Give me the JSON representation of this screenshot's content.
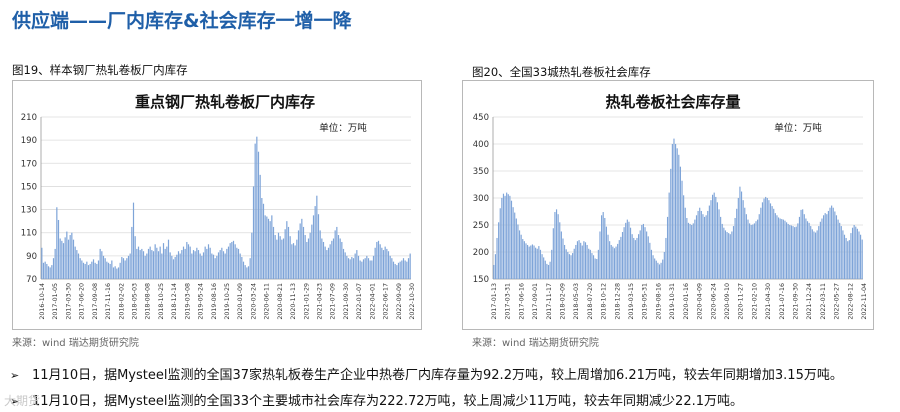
{
  "page": {
    "title": "供应端——厂内库存&社会库存一增一降",
    "bullets": [
      "11月10日，据Mysteel监测的全国37家热轧板卷生产企业中热卷厂内库存量为92.2万吨，较上周增加6.21万吨，较去年同期增加3.15万吨。",
      "11月10日，据Mysteel监测的全国33个主要城市社会库存为222.72万吨，较上周减少11万吨，较去年同期减少22.1万吨。"
    ],
    "watermark": "大期货"
  },
  "chart_data": [
    {
      "type": "bar",
      "figure_caption": "图19、样本钢厂热轧卷板厂内库存",
      "title": "重点钢厂热轧卷板厂内库存",
      "unit_label": "单位：万吨",
      "source": "来源：wind   瑞达期货研究院",
      "ylim": [
        70,
        210
      ],
      "yticks": [
        70,
        90,
        110,
        130,
        150,
        170,
        190,
        210
      ],
      "grid": true,
      "color": "#7ea4d8",
      "xtick_labels": [
        "2016-10-14",
        "2017-01-05",
        "2017-03-30",
        "2017-06-20",
        "2017-09-08",
        "2017-11-16",
        "2018-02-02",
        "2018-05-03",
        "2018-08-08",
        "2018-10-25",
        "2018-12-14",
        "2019-03-08",
        "2019-05-24",
        "2019-08-16",
        "2019-10-25",
        "2020-01-09",
        "2020-03-24",
        "2020-06-11",
        "2020-08-21",
        "2020-11-13",
        "2021-01-29",
        "2021-04-23",
        "2021-07-09",
        "2021-09-30",
        "2022-01-07",
        "2022-04-01",
        "2022-06-17",
        "2022-09-09",
        "2022-10-30"
      ],
      "series": [
        {
          "values": [
            97,
            84,
            85,
            83,
            81,
            80,
            82,
            88,
            96,
            132,
            121,
            105,
            103,
            101,
            106,
            111,
            104,
            108,
            110,
            104,
            98,
            95,
            92,
            88,
            86,
            84,
            83,
            85,
            82,
            83,
            85,
            87,
            84,
            83,
            86,
            96,
            94,
            90,
            88,
            85,
            84,
            83,
            86,
            80,
            81,
            79,
            80,
            84,
            89,
            88,
            86,
            88,
            90,
            92,
            115,
            136,
            107,
            96,
            98,
            95,
            96,
            94,
            90,
            92,
            96,
            98,
            95,
            94,
            100,
            97,
            94,
            98,
            92,
            101,
            96,
            98,
            104,
            93,
            90,
            87,
            89,
            91,
            94,
            92,
            95,
            98,
            96,
            102,
            100,
            98,
            92,
            95,
            94,
            97,
            95,
            92,
            90,
            93,
            98,
            96,
            100,
            97,
            92,
            91,
            88,
            90,
            93,
            95,
            97,
            94,
            92,
            96,
            98,
            101,
            102,
            103,
            100,
            97,
            96,
            92,
            89,
            85,
            82,
            80,
            81,
            88,
            110,
            150,
            187,
            193,
            180,
            160,
            140,
            135,
            125,
            124,
            122,
            120,
            125,
            115,
            108,
            104,
            110,
            107,
            104,
            105,
            113,
            120,
            115,
            107,
            100,
            101,
            99,
            104,
            112,
            118,
            122,
            115,
            108,
            102,
            105,
            110,
            117,
            125,
            133,
            142,
            126,
            112,
            105,
            102,
            98,
            95,
            97,
            100,
            103,
            105,
            112,
            115,
            108,
            105,
            102,
            96,
            93,
            90,
            88,
            87,
            89,
            88,
            92,
            95,
            90,
            86,
            85,
            87,
            88,
            90,
            88,
            86,
            86,
            90,
            97,
            102,
            103,
            100,
            97,
            95,
            98,
            96,
            94,
            90,
            88,
            85,
            83,
            82,
            84,
            85,
            86,
            88,
            86,
            85,
            88,
            92
          ]
        }
      ]
    },
    {
      "type": "bar",
      "figure_caption": "图20、全国33城热轧卷板社会库存",
      "title": "热轧卷板社会库存量",
      "unit_label": "单位：万吨",
      "source": "来源：wind   瑞达期货研究院",
      "ylim": [
        150,
        450
      ],
      "yticks": [
        150,
        200,
        250,
        300,
        350,
        400,
        450
      ],
      "grid": true,
      "color": "#7ea4d8",
      "xtick_labels": [
        "2017-01-13",
        "2017-03-31",
        "2017-06-16",
        "2017-09-01",
        "2017-11-17",
        "2018-02-09",
        "2018-05-03",
        "2018-07-20",
        "2018-10-12",
        "2018-12-28",
        "2019-03-15",
        "2019-05-31",
        "2019-08-16",
        "2019-10-31",
        "2020-01-16",
        "2020-04-09",
        "2020-06-24",
        "2020-09-10",
        "2020-11-27",
        "2021-02-10",
        "2021-04-30",
        "2021-07-16",
        "2021-09-30",
        "2021-12-24",
        "2022-03-11",
        "2022-05-27",
        "2022-08-12",
        "2022-11-04"
      ],
      "series": [
        {
          "values": [
            176,
            196,
            226,
            255,
            281,
            300,
            308,
            304,
            310,
            307,
            304,
            295,
            283,
            273,
            262,
            251,
            240,
            232,
            224,
            220,
            216,
            213,
            210,
            212,
            214,
            212,
            208,
            206,
            211,
            204,
            196,
            190,
            184,
            178,
            176,
            182,
            204,
            244,
            274,
            279,
            270,
            255,
            238,
            225,
            213,
            205,
            200,
            196,
            194,
            198,
            206,
            213,
            220,
            222,
            217,
            212,
            220,
            218,
            213,
            206,
            204,
            198,
            194,
            188,
            187,
            204,
            238,
            268,
            274,
            263,
            247,
            232,
            220,
            213,
            210,
            207,
            210,
            215,
            222,
            228,
            237,
            246,
            254,
            260,
            256,
            245,
            233,
            226,
            222,
            226,
            233,
            240,
            250,
            252,
            246,
            238,
            229,
            217,
            204,
            194,
            188,
            184,
            180,
            177,
            180,
            186,
            200,
            226,
            265,
            310,
            354,
            400,
            410,
            400,
            392,
            380,
            358,
            332,
            305,
            282,
            263,
            254,
            252,
            250,
            253,
            260,
            268,
            276,
            282,
            276,
            270,
            265,
            268,
            276,
            286,
            296,
            306,
            310,
            302,
            292,
            279,
            265,
            252,
            245,
            240,
            237,
            235,
            233,
            238,
            248,
            263,
            280,
            300,
            321,
            312,
            296,
            282,
            270,
            260,
            253,
            250,
            251,
            253,
            257,
            260,
            270,
            282,
            292,
            299,
            302,
            300,
            296,
            290,
            285,
            280,
            272,
            268,
            264,
            262,
            261,
            260,
            258,
            255,
            252,
            250,
            249,
            248,
            246,
            247,
            253,
            265,
            278,
            279,
            270,
            262,
            257,
            254,
            248,
            242,
            238,
            236,
            240,
            248,
            256,
            262,
            268,
            272,
            270,
            276,
            282,
            286,
            282,
            275,
            268,
            260,
            254,
            248,
            240,
            232,
            226,
            220,
            222,
            235,
            245,
            250,
            247,
            243,
            238,
            232,
            223
          ]
        }
      ]
    }
  ]
}
